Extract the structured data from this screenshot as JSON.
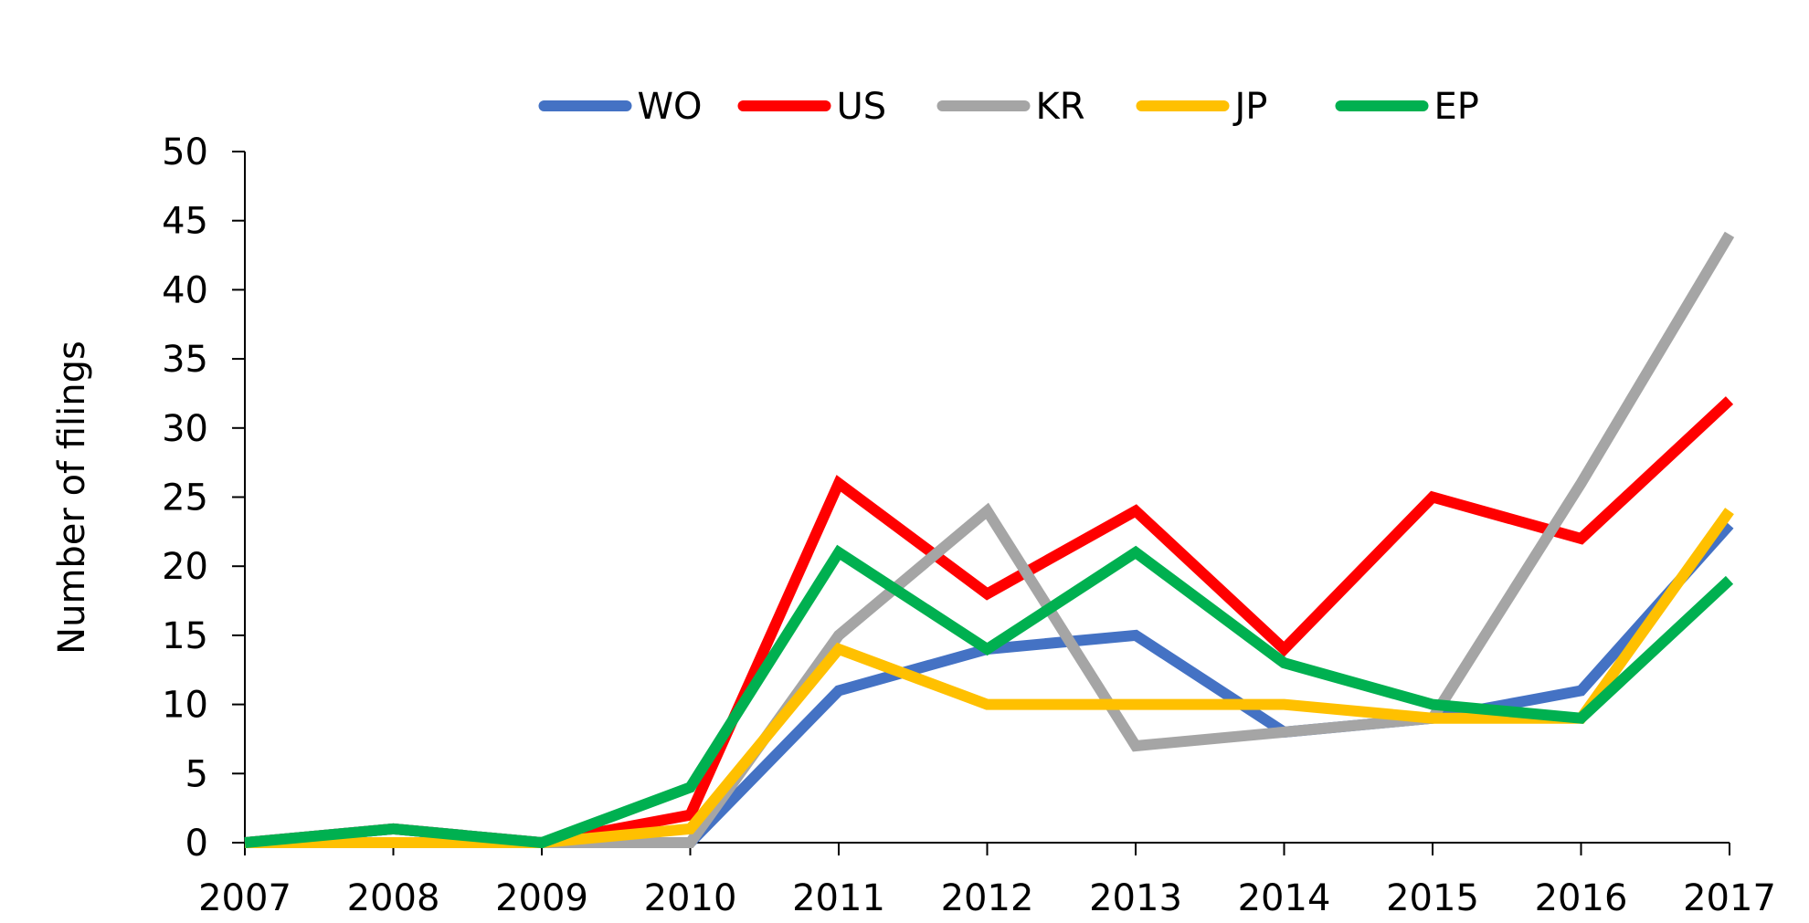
{
  "chart_data": {
    "type": "line",
    "title": "",
    "xlabel": "",
    "ylabel": "Number of filings",
    "x": [
      "2007",
      "2008",
      "2009",
      "2010",
      "2011",
      "2012",
      "2013",
      "2014",
      "2015",
      "2016",
      "2017"
    ],
    "ylim": [
      0,
      50
    ],
    "yticks": [
      "0",
      "5",
      "10",
      "15",
      "20",
      "25",
      "30",
      "35",
      "40",
      "45",
      "50"
    ],
    "grid": false,
    "legend_position": "top",
    "series": [
      {
        "name": "WO",
        "color": "#4472C4",
        "values": [
          0,
          1,
          0,
          0,
          11,
          14,
          15,
          8,
          9,
          11,
          23
        ]
      },
      {
        "name": "US",
        "color": "#FF0000",
        "values": [
          0,
          1,
          0,
          2,
          26,
          18,
          24,
          14,
          25,
          22,
          32
        ]
      },
      {
        "name": "KR",
        "color": "#A5A5A5",
        "values": [
          0,
          1,
          0,
          0,
          15,
          24,
          7,
          8,
          9,
          26,
          44
        ]
      },
      {
        "name": "JP",
        "color": "#FFC000",
        "values": [
          0,
          0,
          0,
          1,
          14,
          10,
          10,
          10,
          9,
          9,
          24
        ]
      },
      {
        "name": "EP",
        "color": "#00B050",
        "values": [
          0,
          1,
          0,
          4,
          21,
          14,
          21,
          13,
          10,
          9,
          19
        ]
      }
    ]
  }
}
